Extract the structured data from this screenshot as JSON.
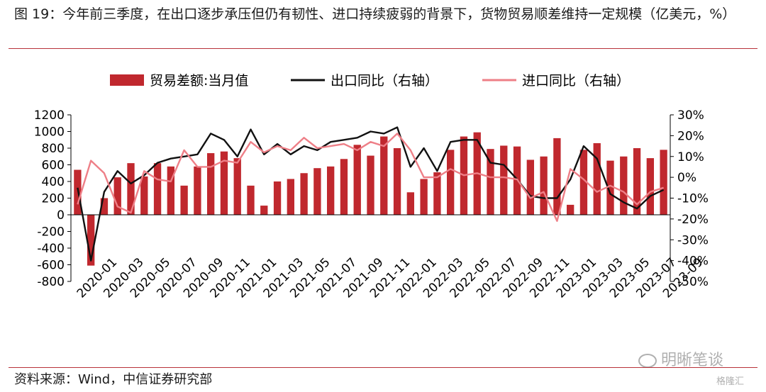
{
  "title": "图 19：今年前三季度，在出口逐步承压但仍有韧性、进口持续疲弱的背景下，货物贸易顺差维持一定规模（亿美元，%）",
  "source": "资料来源：Wind，中信证券研究部",
  "watermark": "明晰笔谈",
  "watermark2": "格隆汇",
  "colors": {
    "bar": "#c0282e",
    "export": "#111111",
    "import": "#ee7f87",
    "rule": "#b8323a"
  },
  "chart_data": {
    "type": "bar+line",
    "legend": [
      "贸易差额:当月值",
      "出口同比（右轴）",
      "进口同比（右轴）"
    ],
    "legend_position": "top",
    "x": [
      "2020-01",
      "2020-02",
      "2020-03",
      "2020-04",
      "2020-05",
      "2020-06",
      "2020-07",
      "2020-08",
      "2020-09",
      "2020-10",
      "2020-11",
      "2020-12",
      "2021-01",
      "2021-02",
      "2021-03",
      "2021-04",
      "2021-05",
      "2021-06",
      "2021-07",
      "2021-08",
      "2021-09",
      "2021-10",
      "2021-11",
      "2021-12",
      "2022-01",
      "2022-02",
      "2022-03",
      "2022-04",
      "2022-05",
      "2022-06",
      "2022-07",
      "2022-08",
      "2022-09",
      "2022-10",
      "2022-11",
      "2022-12",
      "2023-01",
      "2023-02",
      "2023-03",
      "2023-04",
      "2023-05",
      "2023-06",
      "2023-07",
      "2023-08",
      "2023-09"
    ],
    "x_tick_labels": [
      "2020-01",
      "2020-03",
      "2020-05",
      "2020-07",
      "2020-09",
      "2020-11",
      "2021-01",
      "2021-03",
      "2021-05",
      "2021-07",
      "2021-09",
      "2021-11",
      "2022-01",
      "2022-03",
      "2022-05",
      "2022-07",
      "2022-09",
      "2022-11",
      "2023-01",
      "2023-03",
      "2023-05",
      "2023-07",
      "2023-09"
    ],
    "left_axis": {
      "ylim": [
        -800,
        1200
      ],
      "ticks": [
        "1200",
        "1000",
        "800",
        "600",
        "400",
        "200",
        "0",
        "-200",
        "-400",
        "-600",
        "-800"
      ]
    },
    "right_axis": {
      "ylim": [
        -50,
        30
      ],
      "ticks": [
        "30%",
        "20%",
        "10%",
        "0%",
        "-10%",
        "-20%",
        "-30%",
        "-40%",
        "-50%"
      ]
    },
    "series": [
      {
        "name": "贸易差额:当月值",
        "type": "bar",
        "axis": "left",
        "values": [
          540,
          -610,
          200,
          450,
          620,
          460,
          620,
          580,
          350,
          580,
          740,
          760,
          680,
          350,
          110,
          400,
          430,
          500,
          560,
          580,
          670,
          840,
          710,
          940,
          800,
          270,
          430,
          510,
          780,
          940,
          990,
          790,
          830,
          820,
          660,
          700,
          920,
          120,
          780,
          860,
          650,
          700,
          800,
          680,
          780
        ]
      },
      {
        "name": "出口同比（右轴）",
        "type": "line",
        "axis": "right",
        "values": [
          -5,
          -40,
          -7,
          3,
          -3,
          1,
          7,
          9,
          10,
          11,
          21,
          18,
          10,
          23,
          11,
          16,
          11,
          15,
          13,
          17,
          18,
          19,
          22,
          21,
          24,
          5,
          14,
          3,
          17,
          18,
          18,
          7,
          6,
          -1,
          -9,
          -10,
          -10,
          -1,
          15,
          9,
          -8,
          -12,
          -15,
          -9,
          -6
        ]
      },
      {
        "name": "进口同比（右轴）",
        "type": "line",
        "axis": "right",
        "values": [
          -13,
          8,
          2,
          -14,
          -17,
          3,
          -1,
          -2,
          13,
          5,
          5,
          8,
          7,
          17,
          12,
          15,
          13,
          19,
          14,
          15,
          16,
          13,
          17,
          15,
          21,
          13,
          0,
          0,
          4,
          1,
          2,
          0,
          0,
          -1,
          -10,
          -7,
          -21,
          4,
          -1,
          -7,
          -4,
          -7,
          -13,
          -7,
          -5
        ]
      }
    ]
  }
}
